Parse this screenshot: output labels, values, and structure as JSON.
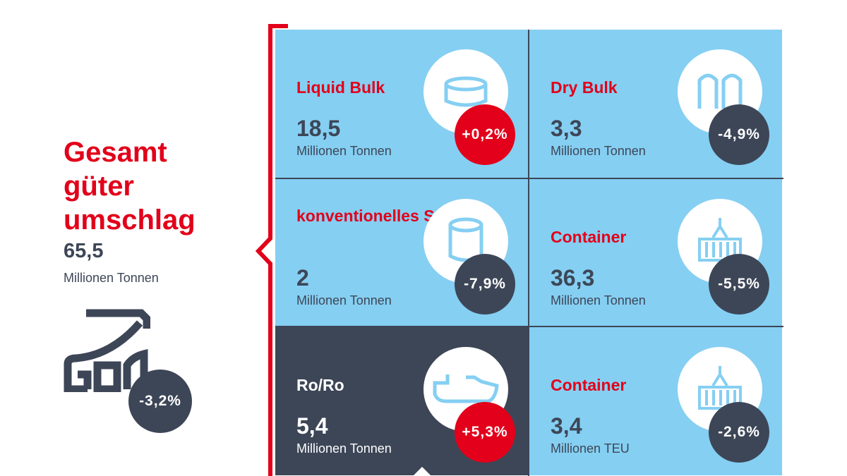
{
  "summary": {
    "title_lines": [
      "Gesamt",
      "güter",
      "umschlag"
    ],
    "value": "65,5",
    "unit": "Millionen Tonnen",
    "change": "-3,2%",
    "icon": "growth-chart-icon"
  },
  "cells": [
    {
      "title": "Liquid Bulk",
      "value": "18,5",
      "unit": "Millionen Tonnen",
      "change": "+0,2%",
      "icon": "tank-icon",
      "positive": true
    },
    {
      "title": "Dry Bulk",
      "value": "3,3",
      "unit": "Millionen Tonnen",
      "change": "-4,9%",
      "icon": "silo-icon",
      "positive": false
    },
    {
      "title": "konventionelles Stückgut",
      "value": "2",
      "unit": "Millionen Tonnen",
      "change": "-7,9%",
      "icon": "paper-roll-icon",
      "positive": false
    },
    {
      "title": "Container",
      "value": "36,3",
      "unit": "Millionen Tonnen",
      "change": "-5,5%",
      "icon": "container-crane-icon",
      "positive": false
    },
    {
      "title": "Ro/Ro",
      "value": "5,4",
      "unit": "Millionen Tonnen",
      "change": "+5,3%",
      "icon": "ship-icon",
      "positive": true
    },
    {
      "title": "Container",
      "value": "3,4",
      "unit": "Millionen TEU",
      "change": "-2,6%",
      "icon": "container-crane-icon",
      "positive": false
    }
  ],
  "colors": {
    "red": "#e2001a",
    "dark": "#3d4657",
    "blue": "#85cff2"
  }
}
